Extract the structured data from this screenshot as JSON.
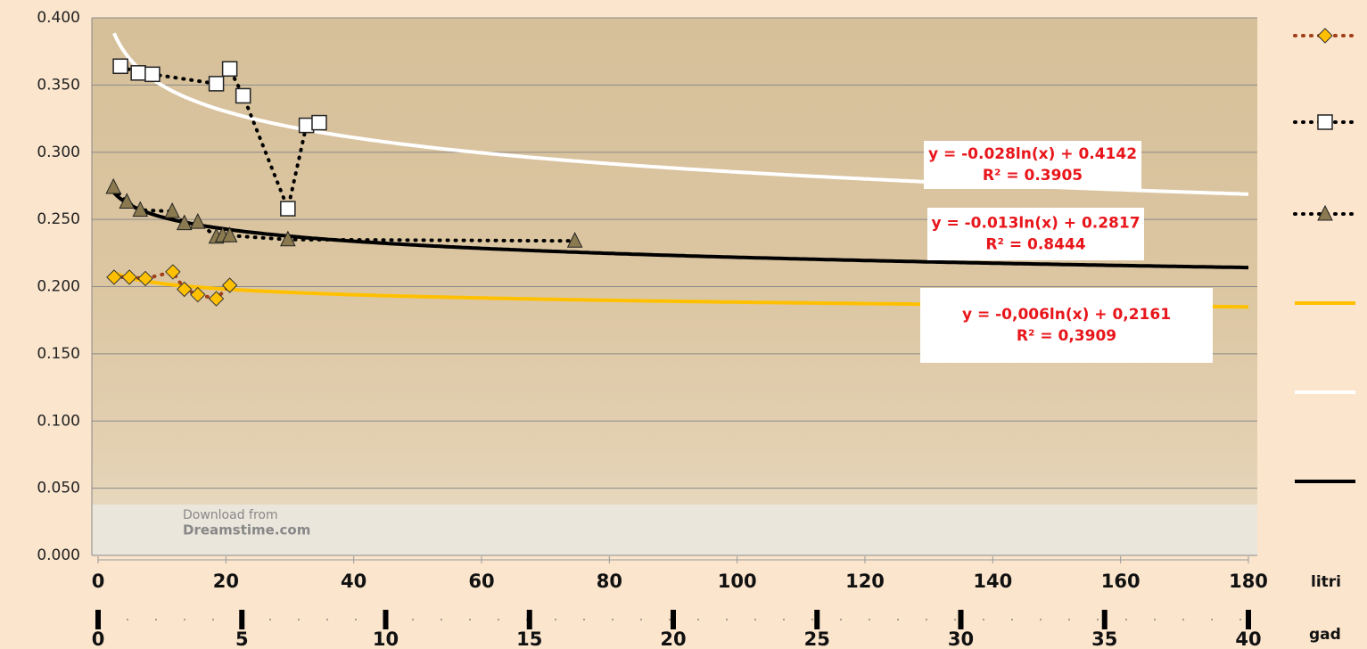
{
  "chart_data": {
    "type": "scatter",
    "series": [
      {
        "color": "#ffc000",
        "line_color": "#a0401a",
        "marker": "diamond",
        "x": [
          2.5,
          4.9,
          7.4,
          11.7,
          13.5,
          15.6,
          18.5,
          20.6
        ],
        "values": [
          0.207,
          0.207,
          0.206,
          0.211,
          0.198,
          0.194,
          0.191,
          0.201
        ]
      },
      {
        "color": "#ffffff",
        "line_color": "#000000",
        "marker": "square",
        "x": [
          3.5,
          6.3,
          8.5,
          18.5,
          20.6,
          22.7,
          29.7,
          32.6,
          34.6
        ],
        "values": [
          0.364,
          0.359,
          0.358,
          0.351,
          0.362,
          0.342,
          0.258,
          0.32,
          0.322
        ]
      },
      {
        "color": "#8b7a4f",
        "line_color": "#000000",
        "marker": "triangle",
        "x": [
          2.4,
          4.5,
          6.6,
          11.6,
          13.5,
          15.6,
          18.5,
          19.5,
          20.6,
          29.7,
          74.6
        ],
        "values": [
          0.274,
          0.263,
          0.257,
          0.256,
          0.247,
          0.248,
          0.237,
          0.238,
          0.238,
          0.235,
          0.234
        ]
      }
    ],
    "trendlines": [
      {
        "color": "#ffc000",
        "a": -0.006,
        "b": 0.2161
      },
      {
        "color": "#ffffff",
        "a": -0.028,
        "b": 0.4142
      },
      {
        "color": "#000000",
        "a": -0.013,
        "b": 0.2817
      }
    ],
    "annotations": [
      [
        "y = -0.028ln(x) + 0.4142",
        "R² = 0.3905"
      ],
      [
        "y = -0.013ln(x) + 0.2817",
        "R² = 0.8444"
      ],
      [
        "y = -0,006ln(x) + 0,2161",
        "R² = 0,3909"
      ]
    ],
    "watermark": [
      "Download from",
      "Dreamstime.com"
    ],
    "xlim": [
      0,
      180
    ],
    "xticks": [
      0,
      20,
      40,
      60,
      80,
      100,
      120,
      140,
      160,
      180
    ],
    "xlabel": "litri",
    "x2lim": [
      0,
      40
    ],
    "x2ticks": [
      0,
      5,
      10,
      15,
      20,
      25,
      30,
      35,
      40
    ],
    "x2label": "gad",
    "ylim": [
      0,
      0.4
    ],
    "yticks": [
      {
        "value": 0,
        "label": "0.000"
      },
      {
        "value": 0.05,
        "label": "0.050"
      },
      {
        "value": 0.1,
        "label": "0.100"
      },
      {
        "value": 0.15,
        "label": "0.150"
      },
      {
        "value": 0.2,
        "label": "0.200"
      },
      {
        "value": 0.25,
        "label": "0.250"
      },
      {
        "value": 0.3,
        "label": "0.300"
      },
      {
        "value": 0.35,
        "label": "0.350"
      },
      {
        "value": 0.4,
        "label": "0.400"
      }
    ],
    "grid": true
  }
}
